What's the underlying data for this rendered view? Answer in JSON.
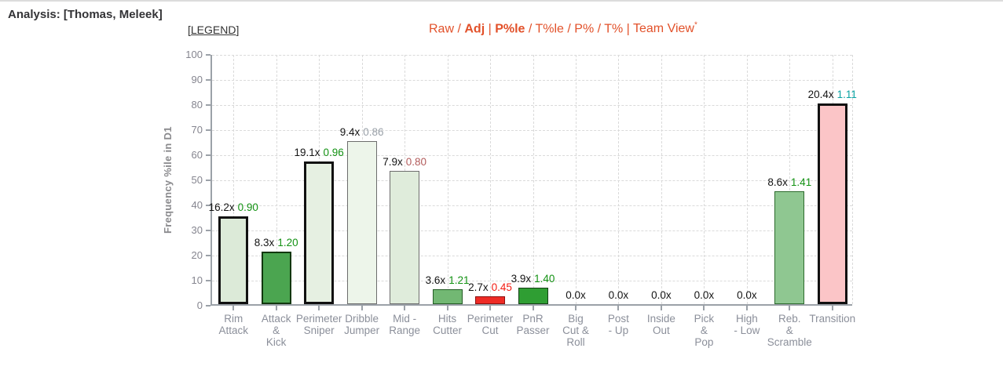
{
  "header": {
    "title": "Analysis: [Thomas, Meleek]",
    "legend": {
      "open": "[",
      "text": "LEGEND",
      "close": "]"
    }
  },
  "nav": {
    "accent_color": "#e2512a",
    "items": [
      {
        "label": "Raw",
        "bold": false,
        "sep": " / "
      },
      {
        "label": "Adj",
        "bold": true,
        "sep": " | "
      },
      {
        "label": "P%le",
        "bold": true,
        "sep": " / "
      },
      {
        "label": "T%le",
        "bold": false,
        "sep": " / "
      },
      {
        "label": "P%",
        "bold": false,
        "sep": " / "
      },
      {
        "label": "T%",
        "bold": false,
        "sep": " | "
      },
      {
        "label": "Team View",
        "bold": false,
        "sep": "",
        "superscript": "*"
      }
    ]
  },
  "chart_data": {
    "type": "bar",
    "title": "",
    "xlabel": "",
    "ylabel": "Frequency %ile in D1",
    "ylim": [
      0,
      100
    ],
    "ytick_step": 10,
    "grid": "dashed",
    "legend_position": "none",
    "categories": [
      "Rim\nAttack",
      "Attack\n&\nKick",
      "Perimeter\nSniper",
      "Dribble\nJumper",
      "Mid -\nRange",
      "Hits\nCutter",
      "Perimeter\nCut",
      "PnR\nPasser",
      "Big\nCut &\nRoll",
      "Post\n- Up",
      "Inside\nOut",
      "Pick\n&\nPop",
      "High\n- Low",
      "Reb.\n&\nScramble",
      "Transition"
    ],
    "series": [
      {
        "name": "Frequency %ile in D1",
        "values": [
          35,
          21,
          57,
          65,
          53,
          6,
          3,
          6.5,
          0,
          0,
          0,
          0,
          0,
          45,
          80
        ]
      }
    ],
    "bar_labels": [
      {
        "multiplier": "16.2x",
        "ratio": "0.90",
        "ratio_color": "#129112"
      },
      {
        "multiplier": "8.3x",
        "ratio": "1.20",
        "ratio_color": "#129112"
      },
      {
        "multiplier": "19.1x",
        "ratio": "0.96",
        "ratio_color": "#129112"
      },
      {
        "multiplier": "9.4x",
        "ratio": "0.86",
        "ratio_color": "#99a0a8"
      },
      {
        "multiplier": "7.9x",
        "ratio": "0.80",
        "ratio_color": "#b25b5b"
      },
      {
        "multiplier": "3.6x",
        "ratio": "1.21",
        "ratio_color": "#129112"
      },
      {
        "multiplier": "2.7x",
        "ratio": "0.45",
        "ratio_color": "#f31b12"
      },
      {
        "multiplier": "3.9x",
        "ratio": "1.40",
        "ratio_color": "#129112"
      },
      {
        "multiplier": "0.0x",
        "ratio": "",
        "ratio_color": "#141414"
      },
      {
        "multiplier": "0.0x",
        "ratio": "",
        "ratio_color": "#141414"
      },
      {
        "multiplier": "0.0x",
        "ratio": "",
        "ratio_color": "#141414"
      },
      {
        "multiplier": "0.0x",
        "ratio": "",
        "ratio_color": "#141414"
      },
      {
        "multiplier": "0.0x",
        "ratio": "",
        "ratio_color": "#141414"
      },
      {
        "multiplier": "8.6x",
        "ratio": "1.41",
        "ratio_color": "#129112"
      },
      {
        "multiplier": "20.4x",
        "ratio": "1.11",
        "ratio_color": "#0ba3a3"
      }
    ],
    "bar_styles": [
      {
        "fill": "#dcead8",
        "border": "#111111",
        "border_width": 3
      },
      {
        "fill": "#4ba550",
        "border": "#12380f",
        "border_width": 2
      },
      {
        "fill": "#e6f0e2",
        "border": "#111111",
        "border_width": 3
      },
      {
        "fill": "#edf5ea",
        "border": "#6d6d6d",
        "border_width": 1.5
      },
      {
        "fill": "#dfecdb",
        "border": "#6d6d6d",
        "border_width": 1.5
      },
      {
        "fill": "#72b873",
        "border": "#235c24",
        "border_width": 1.5
      },
      {
        "fill": "#ee2b25",
        "border": "#8a0f0f",
        "border_width": 1.5
      },
      {
        "fill": "#2f9e33",
        "border": "#123f13",
        "border_width": 1.5
      },
      {
        "fill": "",
        "border": "",
        "border_width": 0
      },
      {
        "fill": "",
        "border": "",
        "border_width": 0
      },
      {
        "fill": "",
        "border": "",
        "border_width": 0
      },
      {
        "fill": "",
        "border": "",
        "border_width": 0
      },
      {
        "fill": "",
        "border": "",
        "border_width": 0
      },
      {
        "fill": "#8fc791",
        "border": "#2d6b2d",
        "border_width": 1.5
      },
      {
        "fill": "#fbc5c7",
        "border": "#111111",
        "border_width": 3
      }
    ]
  }
}
